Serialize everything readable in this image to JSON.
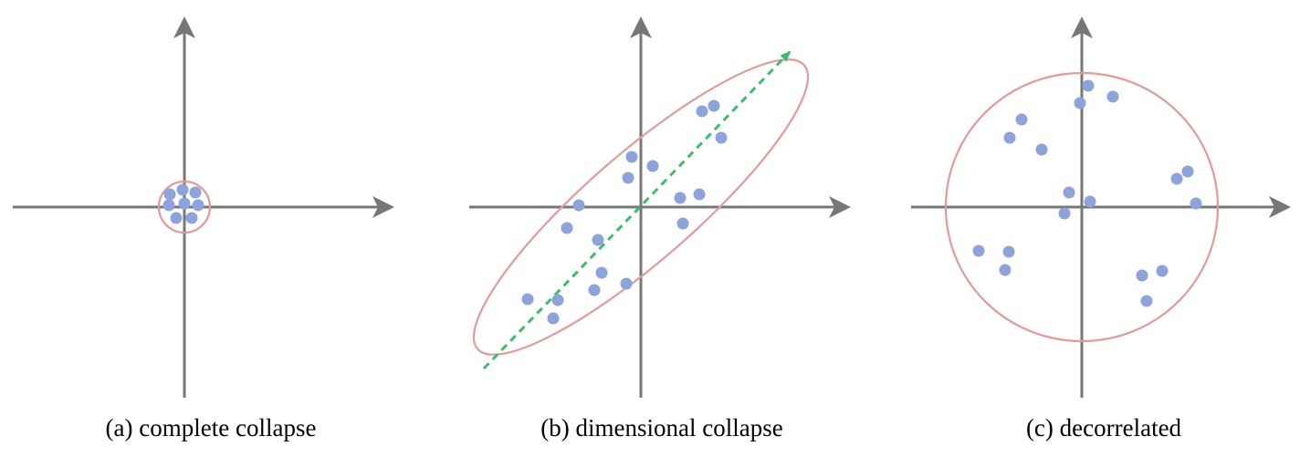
{
  "colors": {
    "axis": "#777777",
    "point": "#8CA3DB",
    "ellipse": "#E39A9A",
    "direction": "#3BBE6A",
    "caption": "#000000"
  },
  "panels": [
    {
      "id": "complete-collapse",
      "caption": "(a) complete collapse",
      "points": [
        [
          -16,
          14
        ],
        [
          -2,
          19
        ],
        [
          12,
          16
        ],
        [
          -17,
          2
        ],
        [
          0,
          4
        ],
        [
          15,
          2
        ],
        [
          -9,
          -12
        ],
        [
          8,
          -12
        ]
      ],
      "ellipse": {
        "rx": 28,
        "ry": 28,
        "angle": 0
      },
      "direction": null
    },
    {
      "id": "dimensional-collapse",
      "caption": "(b) dimensional collapse",
      "points": [
        [
          67,
          105
        ],
        [
          80,
          111
        ],
        [
          88,
          76
        ],
        [
          -10,
          55
        ],
        [
          13,
          45
        ],
        [
          -14,
          32
        ],
        [
          43,
          10
        ],
        [
          64,
          14
        ],
        [
          46,
          -18
        ],
        [
          -68,
          2
        ],
        [
          -81,
          -23
        ],
        [
          -47,
          -36
        ],
        [
          -43,
          -72
        ],
        [
          -51,
          -91
        ],
        [
          -16,
          -84
        ],
        [
          -124,
          -101
        ],
        [
          -91,
          -102
        ],
        [
          -96,
          -122
        ]
      ],
      "ellipse": {
        "rx": 237,
        "ry": 59,
        "angle": 41
      },
      "direction": {
        "from": [
          -172,
          -177
        ],
        "to": [
          163,
          170
        ]
      }
    },
    {
      "id": "decorrelated",
      "caption": "(c) decorrelated",
      "points": [
        [
          7,
          133
        ],
        [
          34,
          121
        ],
        [
          -2,
          114
        ],
        [
          -66,
          96
        ],
        [
          -79,
          76
        ],
        [
          -44,
          63
        ],
        [
          104,
          31
        ],
        [
          116,
          39
        ],
        [
          -14,
          16
        ],
        [
          9,
          6
        ],
        [
          125,
          4
        ],
        [
          -19,
          -7
        ],
        [
          -113,
          -48
        ],
        [
          -80,
          -49
        ],
        [
          -84,
          -69
        ],
        [
          88,
          -70
        ],
        [
          66,
          -75
        ],
        [
          71,
          -103
        ]
      ],
      "ellipse": {
        "rx": 149,
        "ry": 147,
        "angle": 0
      },
      "direction": null
    }
  ]
}
